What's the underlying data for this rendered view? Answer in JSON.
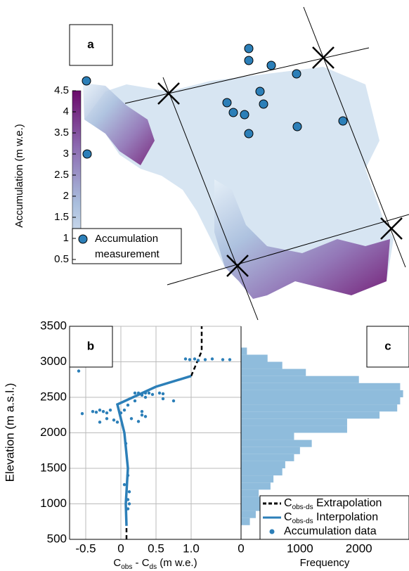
{
  "chart_data": [
    {
      "type": "map",
      "label": "a",
      "colorbar": {
        "label": "Accumulation (m w.e.)",
        "lim": [
          0.5,
          4.5
        ],
        "ticks": [
          0.5,
          1,
          1.5,
          2,
          2.5,
          3,
          3.5,
          4,
          4.5
        ],
        "colors": [
          "#e6f0f8",
          "#a9bedd",
          "#8c6bb1",
          "#6a0a6a"
        ]
      },
      "legend": [
        "Accumulation",
        "measurement"
      ],
      "marker_color": "#2c7fb8"
    },
    {
      "type": "line",
      "label": "b",
      "ylabel": "Elevation (m a.s.l.)",
      "xlabel": [
        "C",
        "obs",
        " - C",
        "ds",
        " (m w.e.)"
      ],
      "xlim": [
        -0.73,
        1.71
      ],
      "xticks": [
        -0.5,
        0,
        0.5,
        {
          "value": 1,
          "label": "1.0"
        }
      ],
      "ylim": [
        500,
        3500
      ],
      "yticks": [
        500,
        1000,
        1500,
        2000,
        2500,
        3000,
        3500
      ],
      "grid": true,
      "series": [
        {
          "name": [
            "C",
            "obs-ds",
            " Extrapolation"
          ],
          "color": "#000000",
          "dash": true,
          "x": [
            0.08,
            0.08,
            null,
            1.0,
            1.15,
            1.15
          ],
          "y": [
            500,
            690,
            null,
            2800,
            3150,
            3500
          ]
        },
        {
          "name": [
            "C",
            "obs-ds",
            " Interpolation"
          ],
          "color": "#2c7fb8",
          "dash": false,
          "x": [
            0.08,
            0.07,
            0.1,
            0.05,
            0.0,
            -0.05,
            0.5,
            1.0
          ],
          "y": [
            690,
            1000,
            1500,
            2000,
            2200,
            2400,
            2650,
            2800
          ]
        },
        {
          "name": [
            "Accumulation data"
          ],
          "color": "#2c7fb8",
          "scatter": true,
          "x": [
            0.92,
            0.98,
            1.05,
            1.1,
            1.2,
            1.3,
            1.45,
            1.55,
            -0.6,
            0.2,
            0.25,
            0.3,
            0.35,
            0.4,
            0.45,
            0.55,
            0.6,
            0.3,
            0.35,
            0.6,
            0.75,
            0.2,
            0.1,
            -0.3,
            -0.25,
            -0.2,
            -0.15,
            -0.35,
            -0.4,
            -0.55,
            -0.1,
            -0.05,
            -0.2,
            -0.3,
            0.3,
            0.3,
            0.35,
            0.15,
            0.25,
            0.05,
            0.0,
            0.07,
            0.1,
            0.05,
            0.12,
            0.1,
            0.1,
            0.12
          ],
          "y": [
            3040,
            3030,
            3040,
            3020,
            3030,
            3040,
            3030,
            3030,
            2870,
            2560,
            2560,
            2550,
            2560,
            2560,
            2540,
            2560,
            2550,
            2530,
            2500,
            2480,
            2450,
            2450,
            2390,
            2320,
            2300,
            2280,
            2320,
            2290,
            2300,
            2270,
            2180,
            2150,
            2200,
            2150,
            2300,
            2250,
            2230,
            2200,
            2160,
            2320,
            2280,
            1850,
            1400,
            1270,
            1170,
            1060,
            930,
            1000
          ]
        }
      ]
    },
    {
      "type": "histogram",
      "label": "c",
      "xlabel": "Frequency",
      "color": "#8fbcdc",
      "bins": [
        700,
        800,
        900,
        1000,
        1100,
        1200,
        1300,
        1400,
        1500,
        1600,
        1700,
        1800,
        1900,
        2000,
        2100,
        2200,
        2300,
        2400,
        2500,
        2600,
        2700,
        2800,
        2900,
        3000,
        3100,
        3200
      ],
      "values": [
        150,
        250,
        350,
        400,
        300,
        500,
        550,
        700,
        750,
        900,
        1000,
        1200,
        900,
        1800,
        1800,
        2350,
        2650,
        2700,
        2750,
        2700,
        2000,
        1100,
        700,
        450,
        100
      ],
      "xlim": [
        0,
        2850
      ],
      "xticks": [
        0,
        1000,
        2000
      ]
    }
  ]
}
